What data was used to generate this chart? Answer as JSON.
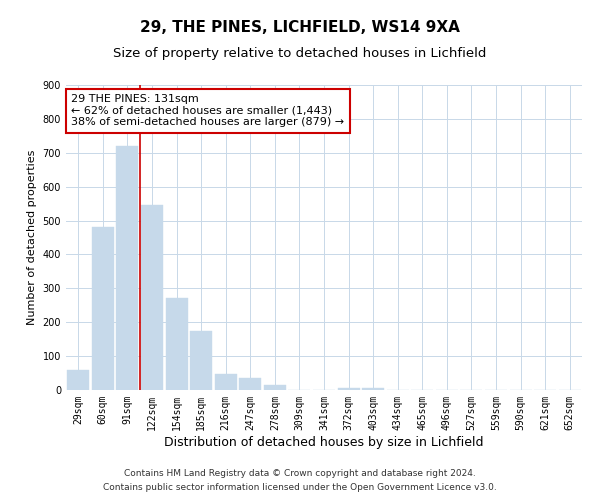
{
  "title": "29, THE PINES, LICHFIELD, WS14 9XA",
  "subtitle": "Size of property relative to detached houses in Lichfield",
  "xlabel": "Distribution of detached houses by size in Lichfield",
  "ylabel": "Number of detached properties",
  "bar_labels": [
    "29sqm",
    "60sqm",
    "91sqm",
    "122sqm",
    "154sqm",
    "185sqm",
    "216sqm",
    "247sqm",
    "278sqm",
    "309sqm",
    "341sqm",
    "372sqm",
    "403sqm",
    "434sqm",
    "465sqm",
    "496sqm",
    "527sqm",
    "559sqm",
    "590sqm",
    "621sqm",
    "652sqm"
  ],
  "bar_values": [
    60,
    480,
    720,
    545,
    272,
    173,
    48,
    35,
    14,
    0,
    0,
    5,
    5,
    0,
    0,
    0,
    0,
    0,
    0,
    0,
    0
  ],
  "bar_color": "#c6d9ea",
  "vline_color": "#cc0000",
  "ylim": [
    0,
    900
  ],
  "yticks": [
    0,
    100,
    200,
    300,
    400,
    500,
    600,
    700,
    800,
    900
  ],
  "annotation_line1": "29 THE PINES: 131sqm",
  "annotation_line2": "← 62% of detached houses are smaller (1,443)",
  "annotation_line3": "38% of semi-detached houses are larger (879) →",
  "footer_line1": "Contains HM Land Registry data © Crown copyright and database right 2024.",
  "footer_line2": "Contains public sector information licensed under the Open Government Licence v3.0.",
  "title_fontsize": 11,
  "subtitle_fontsize": 9.5,
  "xlabel_fontsize": 9,
  "ylabel_fontsize": 8,
  "tick_fontsize": 7,
  "annotation_fontsize": 8,
  "footer_fontsize": 6.5,
  "background_color": "#ffffff",
  "grid_color": "#c8d8e8"
}
